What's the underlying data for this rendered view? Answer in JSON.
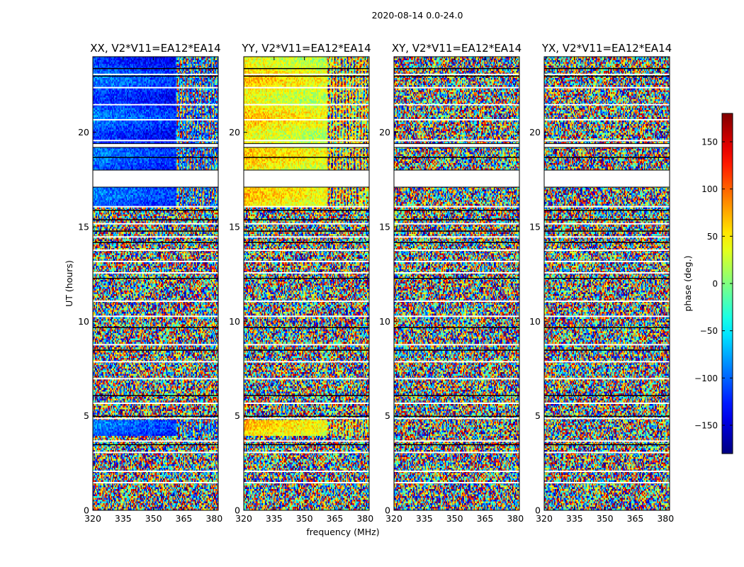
{
  "chart_data": {
    "type": "heatmap",
    "suptitle": "2020-08-14 0.0-24.0",
    "xlabel": "frequency (MHz)",
    "ylabel": "UT (hours)",
    "xlim": [
      320,
      382
    ],
    "ylim": [
      0,
      24
    ],
    "xticks": [
      320,
      335,
      350,
      365,
      380
    ],
    "yticks": [
      0,
      5,
      10,
      15,
      20
    ],
    "panels": [
      {
        "title": "XX, V2*V11=EA12*EA14",
        "mode": "coherent",
        "bias": -100
      },
      {
        "title": "YY, V2*V11=EA12*EA14",
        "mode": "coherent",
        "bias": 55
      },
      {
        "title": "XY, V2*V11=EA12*EA14",
        "mode": "noise",
        "bias": 0
      },
      {
        "title": "YX, V2*V11=EA12*EA14",
        "mode": "noise",
        "bias": 0
      }
    ],
    "colorbar": {
      "label": "phase (deg.)",
      "range": [
        -180,
        180
      ],
      "ticks": [
        150,
        100,
        50,
        0,
        -50,
        -100,
        -150
      ],
      "tick_labels": [
        "150",
        "100",
        "50",
        "0",
        "−50",
        "−100",
        "−150"
      ],
      "colormap": "jet"
    },
    "data_gaps_ut": [
      [
        17.1,
        18.0
      ],
      [
        19.2,
        19.4
      ]
    ],
    "coherent_region_ut": [
      16.0,
      24.0
    ],
    "coherent_region_freq_max": 361,
    "bright_band_ut": [
      3.9,
      4.8
    ]
  }
}
